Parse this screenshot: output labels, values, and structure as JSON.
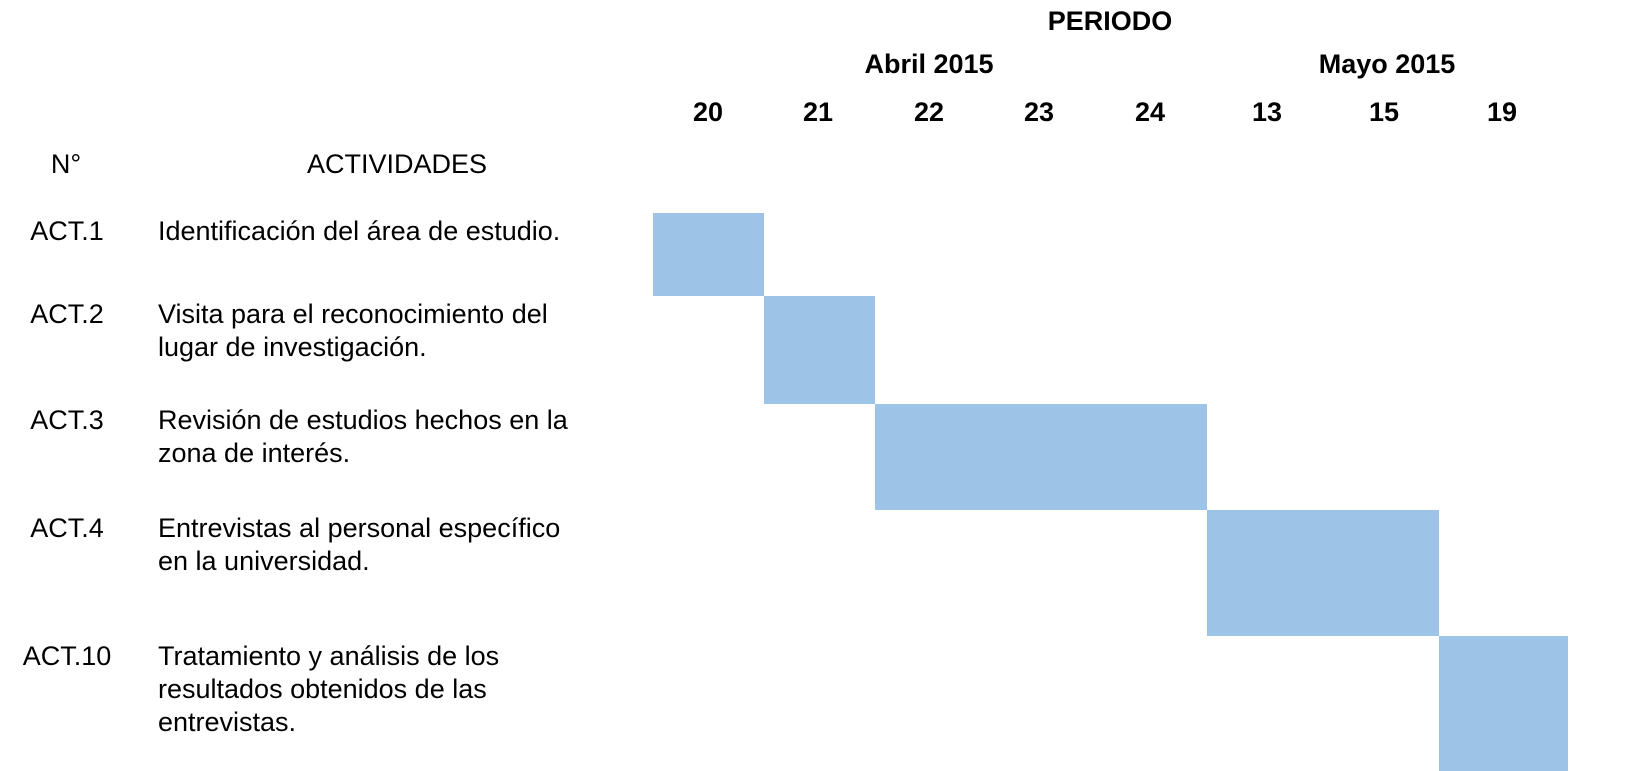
{
  "header": {
    "title": "PERIODO",
    "months": [
      "Abril 2015",
      "Mayo 2015"
    ],
    "days": [
      "20",
      "21",
      "22",
      "23",
      "24",
      "13",
      "15",
      "19"
    ],
    "number_label": "N°",
    "activities_label": "ACTIVIDADES"
  },
  "rows": [
    {
      "id": "ACT.1",
      "lines": [
        "Identificación del área de estudio."
      ]
    },
    {
      "id": "ACT.2",
      "lines": [
        "Visita para el reconocimiento del",
        "lugar de investigación."
      ]
    },
    {
      "id": "ACT.3",
      "lines": [
        "Revisión de estudios hechos en la",
        "zona de interés."
      ]
    },
    {
      "id": "ACT.4",
      "lines": [
        "Entrevistas al personal específico",
        "en la universidad."
      ]
    },
    {
      "id": "ACT.10",
      "lines": [
        "Tratamiento y análisis de los",
        "resultados obtenidos de las",
        "entrevistas."
      ]
    }
  ]
}
